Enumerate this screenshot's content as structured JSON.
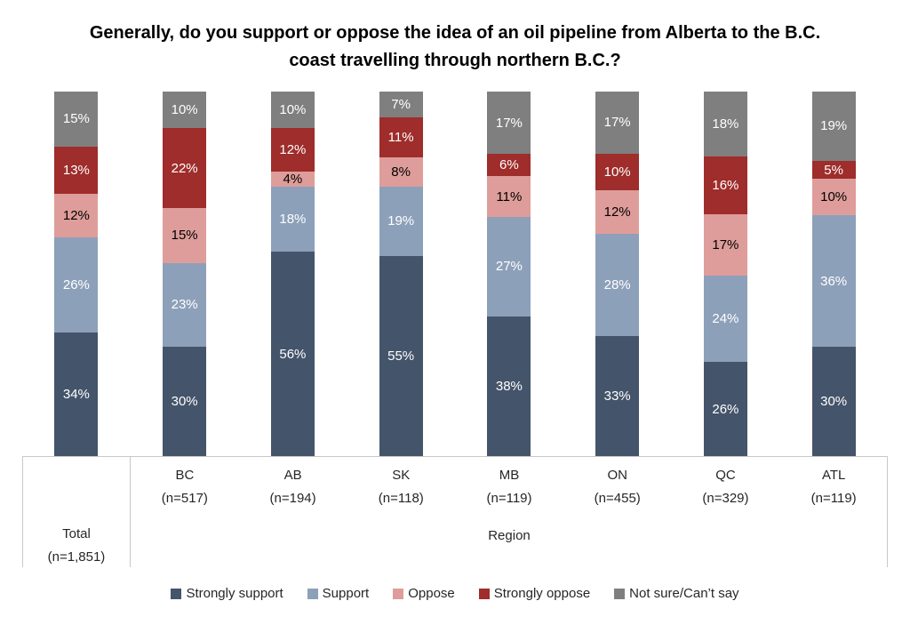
{
  "chart": {
    "title": "Generally, do you support or oppose the idea of an oil pipeline from Alberta to the B.C. coast travelling through northern B.C.?"
  },
  "chart_data": {
    "type": "bar",
    "subtype": "stacked-100-percent-column",
    "title": "Generally, do you support or oppose the idea of an oil pipeline from Alberta to the B.C. coast travelling through northern B.C.?",
    "value_suffix": "%",
    "ylim": [
      0,
      100
    ],
    "grid": false,
    "legend_position": "bottom",
    "categories": [
      "Total",
      "BC",
      "AB",
      "SK",
      "MB",
      "ON",
      "QC",
      "ATL"
    ],
    "series": [
      {
        "name": "Strongly support",
        "color": "#44546A",
        "label_color": "#FFFFFF",
        "values": [
          34,
          30,
          56,
          55,
          38,
          33,
          26,
          30
        ]
      },
      {
        "name": "Support",
        "color": "#8DA0B9",
        "label_color": "#FFFFFF",
        "values": [
          26,
          23,
          18,
          19,
          27,
          28,
          24,
          36
        ]
      },
      {
        "name": "Oppose",
        "color": "#DE9D9A",
        "label_color": "#000000",
        "values": [
          12,
          15,
          4,
          8,
          11,
          12,
          17,
          10
        ]
      },
      {
        "name": "Strongly oppose",
        "color": "#9E2D2B",
        "label_color": "#FFFFFF",
        "values": [
          13,
          22,
          12,
          11,
          6,
          10,
          16,
          5
        ]
      },
      {
        "name": "Not sure/Can’t say",
        "color": "#7F7F7F",
        "label_color": "#FFFFFF",
        "values": [
          15,
          10,
          10,
          7,
          17,
          17,
          18,
          19
        ]
      }
    ],
    "legend": [
      "Strongly support",
      "Support",
      "Oppose",
      "Strongly oppose",
      "Not sure/Can’t say"
    ]
  },
  "x_axis": {
    "total": {
      "line1": "Total",
      "line2": "(n=1,851)"
    },
    "regions": [
      {
        "line1": "BC",
        "line2": "(n=517)"
      },
      {
        "line1": "AB",
        "line2": "(n=194)"
      },
      {
        "line1": "SK",
        "line2": "(n=118)"
      },
      {
        "line1": "MB",
        "line2": "(n=119)"
      },
      {
        "line1": "ON",
        "line2": "(n=455)"
      },
      {
        "line1": "QC",
        "line2": "(n=329)"
      },
      {
        "line1": "ATL",
        "line2": "(n=119)"
      }
    ],
    "group_label": "Region"
  }
}
